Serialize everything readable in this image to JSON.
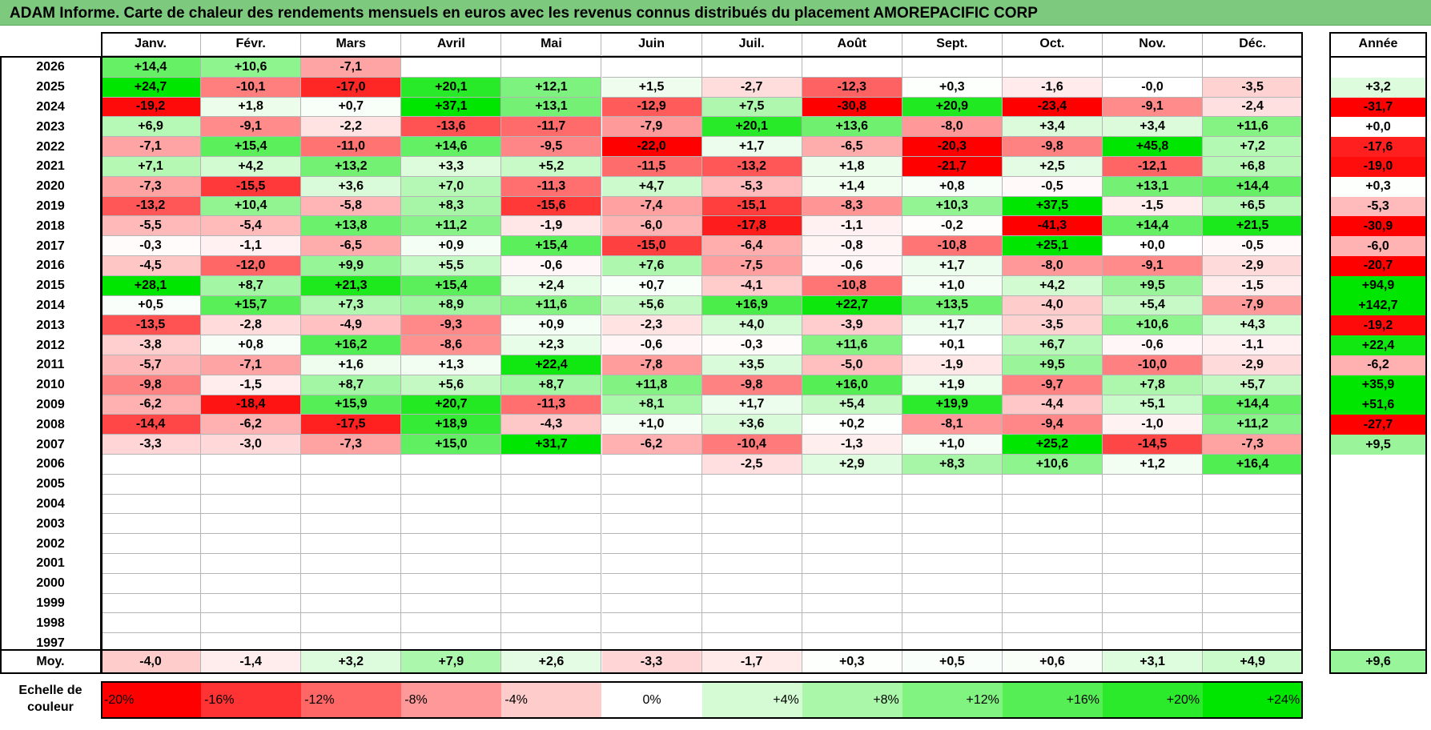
{
  "title": "ADAM Informe. Carte de chaleur des rendements mensuels en euros avec les revenus connus distribués du placement AMOREPACIFIC CORP",
  "chart_data": {
    "type": "heatmap",
    "title": "ADAM Informe. Carte de chaleur des rendements mensuels en euros avec les revenus connus distribués du placement AMOREPACIFIC CORP",
    "months": [
      "Janv.",
      "Févr.",
      "Mars",
      "Avril",
      "Mai",
      "Juin",
      "Juil.",
      "Août",
      "Sept.",
      "Oct.",
      "Nov.",
      "Déc."
    ],
    "year_header": "Année",
    "rows": [
      {
        "year": "2026",
        "values": [
          "+14,4",
          "+10,6",
          "-7,1",
          "",
          "",
          "",
          "",
          "",
          "",
          "",
          "",
          ""
        ],
        "annual": ""
      },
      {
        "year": "2025",
        "values": [
          "+24,7",
          "-10,1",
          "-17,0",
          "+20,1",
          "+12,1",
          "+1,5",
          "-2,7",
          "-12,3",
          "+0,3",
          "-1,6",
          "-0,0",
          "-3,5"
        ],
        "annual": "+3,2"
      },
      {
        "year": "2024",
        "values": [
          "-19,2",
          "+1,8",
          "+0,7",
          "+37,1",
          "+13,1",
          "-12,9",
          "+7,5",
          "-30,8",
          "+20,9",
          "-23,4",
          "-9,1",
          "-2,4"
        ],
        "annual": "-31,7"
      },
      {
        "year": "2023",
        "values": [
          "+6,9",
          "-9,1",
          "-2,2",
          "-13,6",
          "-11,7",
          "-7,9",
          "+20,1",
          "+13,6",
          "-8,0",
          "+3,4",
          "+3,4",
          "+11,6"
        ],
        "annual": "+0,0"
      },
      {
        "year": "2022",
        "values": [
          "-7,1",
          "+15,4",
          "-11,0",
          "+14,6",
          "-9,5",
          "-22,0",
          "+1,7",
          "-6,5",
          "-20,3",
          "-9,8",
          "+45,8",
          "+7,2"
        ],
        "annual": "-17,6"
      },
      {
        "year": "2021",
        "values": [
          "+7,1",
          "+4,2",
          "+13,2",
          "+3,3",
          "+5,2",
          "-11,5",
          "-13,2",
          "+1,8",
          "-21,7",
          "+2,5",
          "-12,1",
          "+6,8"
        ],
        "annual": "-19,0"
      },
      {
        "year": "2020",
        "values": [
          "-7,3",
          "-15,5",
          "+3,6",
          "+7,0",
          "-11,3",
          "+4,7",
          "-5,3",
          "+1,4",
          "+0,8",
          "-0,5",
          "+13,1",
          "+14,4"
        ],
        "annual": "+0,3"
      },
      {
        "year": "2019",
        "values": [
          "-13,2",
          "+10,4",
          "-5,8",
          "+8,3",
          "-15,6",
          "-7,4",
          "-15,1",
          "-8,3",
          "+10,3",
          "+37,5",
          "-1,5",
          "+6,5"
        ],
        "annual": "-5,3"
      },
      {
        "year": "2018",
        "values": [
          "-5,5",
          "-5,4",
          "+13,8",
          "+11,2",
          "-1,9",
          "-6,0",
          "-17,8",
          "-1,1",
          "-0,2",
          "-41,3",
          "+14,4",
          "+21,5"
        ],
        "annual": "-30,9"
      },
      {
        "year": "2017",
        "values": [
          "-0,3",
          "-1,1",
          "-6,5",
          "+0,9",
          "+15,4",
          "-15,0",
          "-6,4",
          "-0,8",
          "-10,8",
          "+25,1",
          "+0,0",
          "-0,5"
        ],
        "annual": "-6,0"
      },
      {
        "year": "2016",
        "values": [
          "-4,5",
          "-12,0",
          "+9,9",
          "+5,5",
          "-0,6",
          "+7,6",
          "-7,5",
          "-0,6",
          "+1,7",
          "-8,0",
          "-9,1",
          "-2,9"
        ],
        "annual": "-20,7"
      },
      {
        "year": "2015",
        "values": [
          "+28,1",
          "+8,7",
          "+21,3",
          "+15,4",
          "+2,4",
          "+0,7",
          "-4,1",
          "-10,8",
          "+1,0",
          "+4,2",
          "+9,5",
          "-1,5"
        ],
        "annual": "+94,9"
      },
      {
        "year": "2014",
        "values": [
          "+0,5",
          "+15,7",
          "+7,3",
          "+8,9",
          "+11,6",
          "+5,6",
          "+16,9",
          "+22,7",
          "+13,5",
          "-4,0",
          "+5,4",
          "-7,9"
        ],
        "annual": "+142,7"
      },
      {
        "year": "2013",
        "values": [
          "-13,5",
          "-2,8",
          "-4,9",
          "-9,3",
          "+0,9",
          "-2,3",
          "+4,0",
          "-3,9",
          "+1,7",
          "-3,5",
          "+10,6",
          "+4,3"
        ],
        "annual": "-19,2"
      },
      {
        "year": "2012",
        "values": [
          "-3,8",
          "+0,8",
          "+16,2",
          "-8,6",
          "+2,3",
          "-0,6",
          "-0,3",
          "+11,6",
          "+0,1",
          "+6,7",
          "-0,6",
          "-1,1"
        ],
        "annual": "+22,4"
      },
      {
        "year": "2011",
        "values": [
          "-5,7",
          "-7,1",
          "+1,6",
          "+1,3",
          "+22,4",
          "-7,8",
          "+3,5",
          "-5,0",
          "-1,9",
          "+9,5",
          "-10,0",
          "-2,9"
        ],
        "annual": "-6,2"
      },
      {
        "year": "2010",
        "values": [
          "-9,8",
          "-1,5",
          "+8,7",
          "+5,6",
          "+8,7",
          "+11,8",
          "-9,8",
          "+16,0",
          "+1,9",
          "-9,7",
          "+7,8",
          "+5,7"
        ],
        "annual": "+35,9"
      },
      {
        "year": "2009",
        "values": [
          "-6,2",
          "-18,4",
          "+15,9",
          "+20,7",
          "-11,3",
          "+8,1",
          "+1,7",
          "+5,4",
          "+19,9",
          "-4,4",
          "+5,1",
          "+14,4"
        ],
        "annual": "+51,6"
      },
      {
        "year": "2008",
        "values": [
          "-14,4",
          "-6,2",
          "-17,5",
          "+18,9",
          "-4,3",
          "+1,0",
          "+3,6",
          "+0,2",
          "-8,1",
          "-9,4",
          "-1,0",
          "+11,2"
        ],
        "annual": "-27,7"
      },
      {
        "year": "2007",
        "values": [
          "-3,3",
          "-3,0",
          "-7,3",
          "+15,0",
          "+31,7",
          "-6,2",
          "-10,4",
          "-1,3",
          "+1,0",
          "+25,2",
          "-14,5",
          "-7,3"
        ],
        "annual": "+9,5"
      },
      {
        "year": "2006",
        "values": [
          "",
          "",
          "",
          "",
          "",
          "",
          "-2,5",
          "+2,9",
          "+8,3",
          "+10,6",
          "+1,2",
          "+16,4"
        ],
        "annual": ""
      },
      {
        "year": "2005",
        "values": [
          "",
          "",
          "",
          "",
          "",
          "",
          "",
          "",
          "",
          "",
          "",
          ""
        ],
        "annual": ""
      },
      {
        "year": "2004",
        "values": [
          "",
          "",
          "",
          "",
          "",
          "",
          "",
          "",
          "",
          "",
          "",
          ""
        ],
        "annual": ""
      },
      {
        "year": "2003",
        "values": [
          "",
          "",
          "",
          "",
          "",
          "",
          "",
          "",
          "",
          "",
          "",
          ""
        ],
        "annual": ""
      },
      {
        "year": "2002",
        "values": [
          "",
          "",
          "",
          "",
          "",
          "",
          "",
          "",
          "",
          "",
          "",
          ""
        ],
        "annual": ""
      },
      {
        "year": "2001",
        "values": [
          "",
          "",
          "",
          "",
          "",
          "",
          "",
          "",
          "",
          "",
          "",
          ""
        ],
        "annual": ""
      },
      {
        "year": "2000",
        "values": [
          "",
          "",
          "",
          "",
          "",
          "",
          "",
          "",
          "",
          "",
          "",
          ""
        ],
        "annual": ""
      },
      {
        "year": "1999",
        "values": [
          "",
          "",
          "",
          "",
          "",
          "",
          "",
          "",
          "",
          "",
          "",
          ""
        ],
        "annual": ""
      },
      {
        "year": "1998",
        "values": [
          "",
          "",
          "",
          "",
          "",
          "",
          "",
          "",
          "",
          "",
          "",
          ""
        ],
        "annual": ""
      },
      {
        "year": "1997",
        "values": [
          "",
          "",
          "",
          "",
          "",
          "",
          "",
          "",
          "",
          "",
          "",
          ""
        ],
        "annual": ""
      }
    ],
    "average": {
      "label": "Moy.",
      "values": [
        "-4,0",
        "-1,4",
        "+3,2",
        "+7,9",
        "+2,6",
        "-3,3",
        "-1,7",
        "+0,3",
        "+0,5",
        "+0,6",
        "+3,1",
        "+4,9"
      ],
      "annual": "+9,6"
    },
    "color_scale": {
      "label": "Echelle de couleur",
      "stops": [
        "-20%",
        "-16%",
        "-12%",
        "-8%",
        "-4%",
        "0%",
        "+4%",
        "+8%",
        "+12%",
        "+16%",
        "+20%",
        "+24%"
      ],
      "stop_values": [
        -20,
        -16,
        -12,
        -8,
        -4,
        0,
        4,
        8,
        12,
        16,
        20,
        24
      ],
      "negative_color": "#ff0000",
      "zero_color": "#ffffff",
      "positive_color": "#00e600"
    }
  }
}
